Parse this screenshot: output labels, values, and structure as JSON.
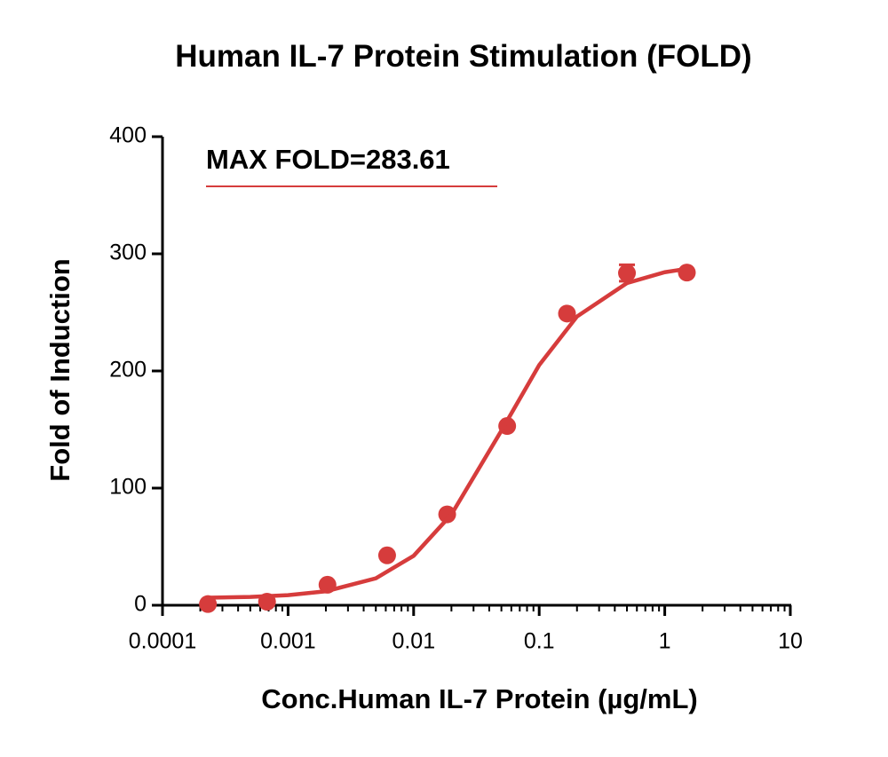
{
  "chart_data": {
    "type": "scatter",
    "title": "Human IL-7 Protein Stimulation (FOLD)",
    "annotation": "MAX FOLD=283.61",
    "x_label": "Conc.Human IL-7 Protein (µg/mL)",
    "y_label": "Fold of Induction",
    "x_scale": "log",
    "xlim": [
      0.0001,
      10
    ],
    "xticks": [
      0.0001,
      0.001,
      0.01,
      0.1,
      1,
      10
    ],
    "x_minor_ticks": true,
    "ylim": [
      0,
      400
    ],
    "yticks": [
      0,
      100,
      200,
      300,
      400
    ],
    "grid": false,
    "series": [
      {
        "type": "scatter",
        "color": "#d63c3c",
        "x": [
          0.00023,
          0.00068,
          0.00206,
          0.00615,
          0.0185,
          0.0556,
          0.1665,
          0.5,
          1.5
        ],
        "values": [
          1,
          3,
          17.5,
          42.6,
          77.6,
          153,
          249,
          283.6,
          284
        ],
        "errors": [
          null,
          null,
          null,
          null,
          null,
          null,
          null,
          7,
          null
        ]
      },
      {
        "type": "line",
        "color": "#d63c3c",
        "x": [
          0.00023,
          0.0005,
          0.001,
          0.002,
          0.005,
          0.01,
          0.02,
          0.05,
          0.1,
          0.2,
          0.5,
          1,
          1.5
        ],
        "values": [
          6.4,
          7.1,
          8.6,
          11.9,
          23,
          42.2,
          77.5,
          149,
          205,
          246.5,
          275,
          284.3,
          287.2
        ]
      }
    ]
  }
}
